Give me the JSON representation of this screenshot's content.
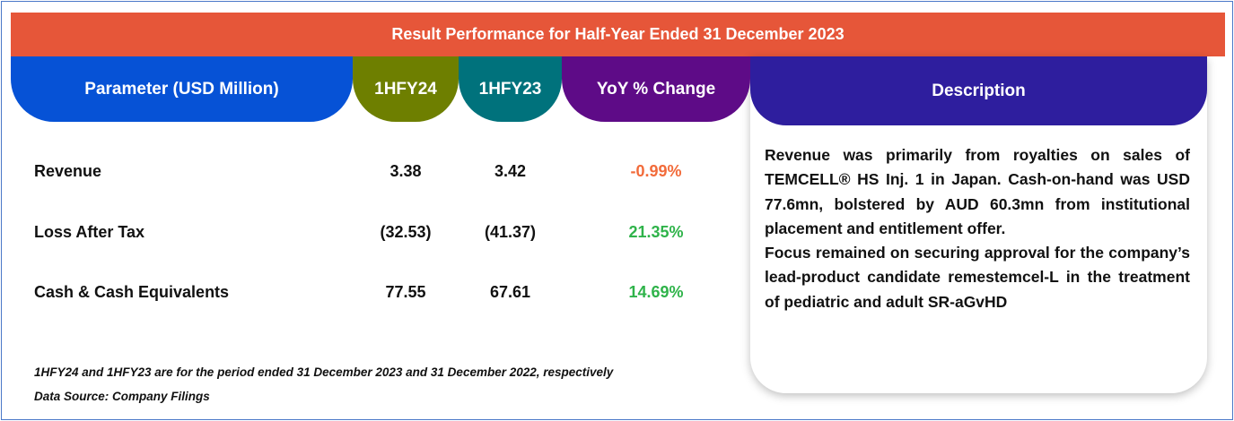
{
  "title": "Result Performance for Half-Year Ended 31 December 2023",
  "headers": {
    "parameter": "Parameter (USD Million)",
    "h1": "1HFY24",
    "h2": "1HFY23",
    "yoy": "YoY % Change",
    "description": "Description"
  },
  "colors": {
    "title": "#e65639",
    "parameter": "#0652d6",
    "h1": "#6e7f00",
    "h2": "#00727c",
    "yoy": "#5e0b87",
    "description": "#2e1e9e",
    "negative": "#f26b3a",
    "positive": "#2fb34a"
  },
  "rows": [
    {
      "label": "Revenue",
      "h1": "3.38",
      "h2": "3.42",
      "yoy": "-0.99%"
    },
    {
      "label": "Loss After Tax",
      "h1": "(32.53)",
      "h2": "(41.37)",
      "yoy": "21.35%"
    },
    {
      "label": "Cash & Cash Equivalents",
      "h1": "77.55",
      "h2": "67.61",
      "yoy": "14.69%"
    }
  ],
  "description": [
    "Revenue was primarily from royalties on sales of TEMCELL® HS Inj. 1 in Japan. Cash-on-hand was USD 77.6mn, bolstered by AUD 60.3mn from institutional placement and entitlement offer.",
    "Focus remained on securing  approval for the company’s lead-product candidate remestemcel-L in the treatment of pediatric and adult SR-aGvHD"
  ],
  "footnotes": [
    "1HFY24 and 1HFY23 are for the period ended 31 December 2023 and 31 December 2022, respectively",
    "Data Source: Company Filings"
  ]
}
